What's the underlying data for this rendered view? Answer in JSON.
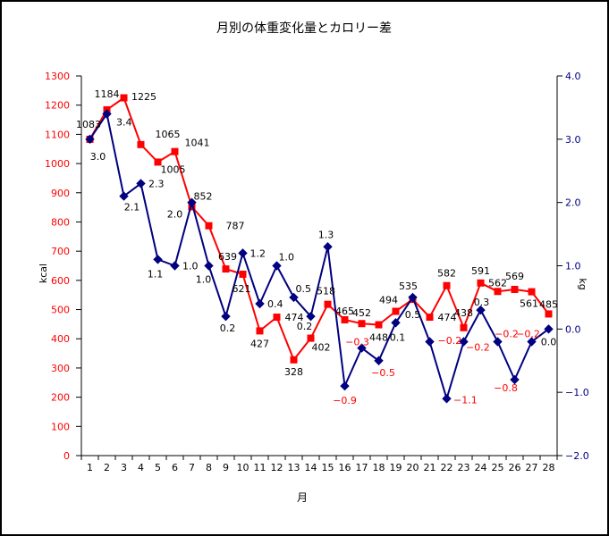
{
  "chart_data": {
    "type": "line",
    "title": "月別の体重変化量とカロリー差",
    "xlabel": "月",
    "ylabel": "kcal",
    "y2label": "kg",
    "x": [
      1,
      2,
      3,
      4,
      5,
      6,
      7,
      8,
      9,
      10,
      11,
      12,
      13,
      14,
      15,
      16,
      17,
      18,
      19,
      20,
      21,
      22,
      23,
      24,
      25,
      26,
      27,
      28
    ],
    "ylim": [
      0,
      1300
    ],
    "ytick_step": 100,
    "y2lim": [
      -2.0,
      4.0
    ],
    "y2tick_step": 1.0,
    "grid": false,
    "legend": "none",
    "data_labels": true,
    "series": [
      {
        "axis": "left",
        "color": "#ff0000",
        "marker": "square",
        "label_color": "#000000",
        "values": [
          1083,
          1184,
          1225,
          1065,
          1005,
          1041,
          852,
          787,
          639,
          621,
          427,
          474,
          328,
          402,
          518,
          465,
          452,
          448,
          494,
          535,
          474,
          582,
          438,
          591,
          562,
          569,
          561,
          485
        ]
      },
      {
        "axis": "right",
        "color": "#000080",
        "marker": "diamond",
        "label_color": "#000000",
        "negative_label_color": "#ff0000",
        "values": [
          3.0,
          3.4,
          2.1,
          2.3,
          1.1,
          1.0,
          2.0,
          1.0,
          0.2,
          1.2,
          0.4,
          1.0,
          0.5,
          0.2,
          1.3,
          -0.9,
          -0.3,
          -0.5,
          0.1,
          0.5,
          -0.2,
          -1.1,
          -0.2,
          0.3,
          -0.2,
          -0.8,
          -0.2,
          0.0
        ]
      }
    ]
  },
  "colors": {
    "left_axis_labels": "#ff0000",
    "right_axis_labels": "#000080",
    "x_axis_labels": "#000000",
    "axis_lines": "#000000",
    "frame": "#000000",
    "background": "#ffffff"
  }
}
